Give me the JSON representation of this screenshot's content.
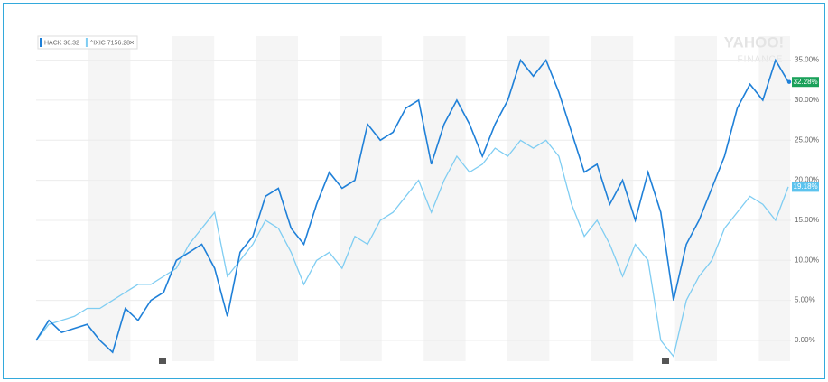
{
  "chart_data": {
    "type": "line",
    "watermark": [
      "YAHOO!",
      "FINANCE"
    ],
    "ylim": [
      -2.6,
      38
    ],
    "yticks": [
      {
        "value": 0,
        "label": "0.00%"
      },
      {
        "value": 5,
        "label": "5.00%"
      },
      {
        "value": 10,
        "label": "10.00%"
      },
      {
        "value": 15,
        "label": "15.00%"
      },
      {
        "value": 20,
        "label": "20.00%"
      },
      {
        "value": 25,
        "label": "25.00%"
      },
      {
        "value": 30,
        "label": "30.00%"
      },
      {
        "value": 35,
        "label": "35.00%"
      }
    ],
    "grid": true,
    "series": [
      {
        "name": "HACK 36.32",
        "color": "#1f80d8",
        "label_color": "#1aa15a",
        "values": [
          0,
          2.5,
          1,
          1.5,
          2,
          0,
          -1.5,
          4,
          2.5,
          5,
          6,
          10,
          11,
          12,
          9,
          3,
          11,
          13,
          18,
          19,
          14,
          12,
          17,
          21,
          19,
          20,
          27,
          25,
          26,
          29,
          30,
          22,
          27,
          30,
          27,
          23,
          27,
          30,
          35,
          33,
          35,
          31,
          26,
          21,
          22,
          17,
          20,
          15,
          21,
          16,
          5,
          12,
          15,
          19,
          23,
          29,
          32,
          30,
          35,
          32.28
        ],
        "end_label": {
          "value": 32.28,
          "label": "32.28%"
        }
      },
      {
        "name": "^IXIC 7156.28",
        "color": "#7fcdf2",
        "label_color": "#5cc3ee",
        "values": [
          0,
          2,
          2.5,
          3,
          4,
          4,
          5,
          6,
          7,
          7,
          8,
          9,
          12,
          14,
          16,
          8,
          10,
          12,
          15,
          14,
          11,
          7,
          10,
          11,
          9,
          13,
          12,
          15,
          16,
          18,
          20,
          16,
          20,
          23,
          21,
          22,
          24,
          23,
          25,
          24,
          25,
          23,
          17,
          13,
          15,
          12,
          8,
          12,
          10,
          0,
          -2,
          5,
          8,
          10,
          14,
          16,
          18,
          17,
          15,
          19.18
        ],
        "end_label": {
          "value": 19.18,
          "label": "19.18%"
        }
      }
    ]
  }
}
